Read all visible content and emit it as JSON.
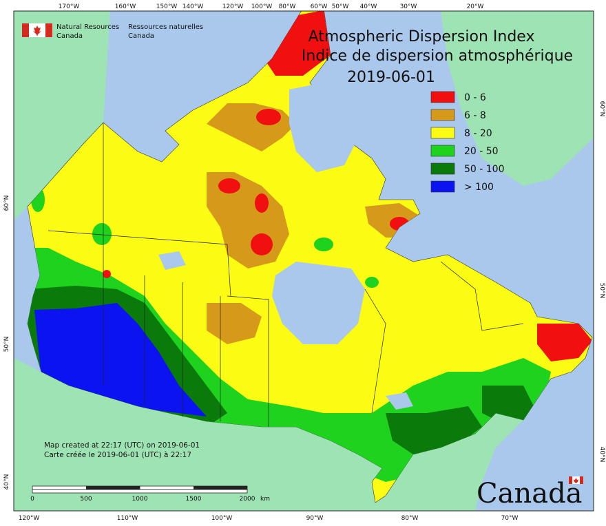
{
  "title": {
    "en": "Atmospheric Dispersion Index",
    "fr": "Indice de dispersion atmosphérique",
    "date": "2019-06-01"
  },
  "agency": {
    "en_line1": "Natural Resources",
    "en_line2": "Canada",
    "fr_line1": "Ressources naturelles",
    "fr_line2": "Canada"
  },
  "legend": [
    {
      "label": "0 - 6",
      "color": "#f01010"
    },
    {
      "label": "6 - 8",
      "color": "#d69a1a"
    },
    {
      "label": "8 - 20",
      "color": "#fbfb14"
    },
    {
      "label": "20 - 50",
      "color": "#1ed21e"
    },
    {
      "label": "50 - 100",
      "color": "#0a7a0a"
    },
    {
      "label": "> 100",
      "color": "#0b14f0"
    }
  ],
  "top_ticks": [
    "170°W",
    "160°W",
    "150°W",
    "140°W",
    "120°W",
    "100°W",
    "80°W",
    "60°W",
    "50°W",
    "40°W",
    "30°W",
    "20°W"
  ],
  "bottom_ticks": [
    "120°W",
    "110°W",
    "100°W",
    "90°W",
    "80°W",
    "70°W"
  ],
  "left_ticks": [
    "60°N",
    "50°N",
    "40°N"
  ],
  "right_ticks": [
    "60°N",
    "50°N",
    "40°N"
  ],
  "footer": {
    "created_en": "Map created at 22:17 (UTC) on 2019-06-01",
    "created_fr": "Carte créée le 2019-06-01 (UTC) à 22:17"
  },
  "scale_bar": {
    "labels": [
      "0",
      "500",
      "1000",
      "1500",
      "2000"
    ],
    "unit": "km"
  },
  "wordmark": "Canada",
  "colors": {
    "ocean": "#a9c8ec",
    "foreign_land": "#9ee3b4",
    "border": "#222222"
  }
}
